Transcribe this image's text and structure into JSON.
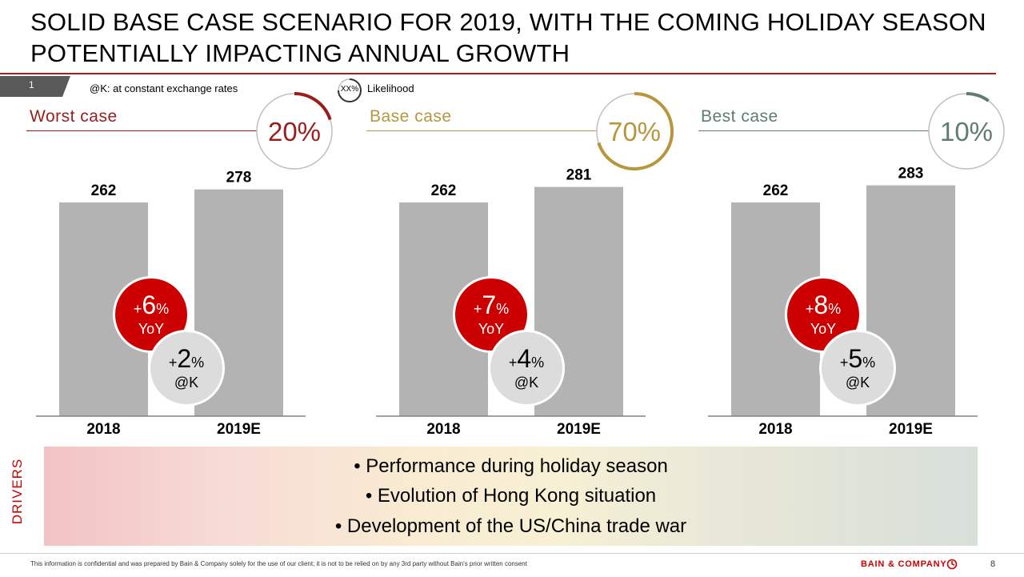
{
  "title": "SOLID BASE CASE SCENARIO FOR 2019, WITH THE COMING HOLIDAY SEASON POTENTIALLY IMPACTING ANNUAL GROWTH",
  "page_tab": "1",
  "note": "@K: at constant exchange rates",
  "likelihood_legend": {
    "icon_label": "XX%",
    "label": "Likelihood"
  },
  "colors": {
    "accent": "#cc0000",
    "bar": "#b3b3b3",
    "worst": "#9b1c1c",
    "base": "#b8963d",
    "best": "#5f7d6e"
  },
  "chart_data": [
    {
      "type": "bar",
      "title": "Worst case",
      "likelihood": "20%",
      "likelihood_value": 0.2,
      "categories": [
        "2018",
        "2019E"
      ],
      "values": [
        262,
        278
      ],
      "yoy_growth": "+6%",
      "yoy_label": "YoY",
      "constant_fx_growth": "+2%",
      "constant_fx_label": "@K"
    },
    {
      "type": "bar",
      "title": "Base case",
      "likelihood": "70%",
      "likelihood_value": 0.7,
      "categories": [
        "2018",
        "2019E"
      ],
      "values": [
        262,
        281
      ],
      "yoy_growth": "+7%",
      "yoy_label": "YoY",
      "constant_fx_growth": "+4%",
      "constant_fx_label": "@K"
    },
    {
      "type": "bar",
      "title": "Best case",
      "likelihood": "10%",
      "likelihood_value": 0.1,
      "categories": [
        "2018",
        "2019E"
      ],
      "values": [
        262,
        283
      ],
      "yoy_growth": "+8%",
      "yoy_label": "YoY",
      "constant_fx_growth": "+5%",
      "constant_fx_label": "@K"
    }
  ],
  "drivers": {
    "label": "DRIVERS",
    "items": [
      "• Performance during holiday season",
      "• Evolution of Hong Kong situation",
      "• Development of the US/China trade war"
    ]
  },
  "footer": {
    "disclaimer": "This information is confidential and was prepared by Bain & Company solely for the use of our client; it is not to be relied on by any 3rd party without Bain's prior written consent",
    "logo": "BAIN & COMPANY",
    "page": "8"
  }
}
